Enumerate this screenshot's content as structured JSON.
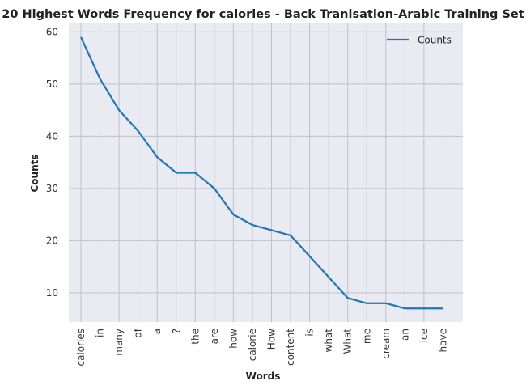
{
  "chart_data": {
    "type": "line",
    "title": "20 Highest Words Frequency for calories - Back Tranlsation-Arabic Training Set",
    "xlabel": "Words",
    "ylabel": "Counts",
    "categories": [
      "calories",
      "in",
      "many",
      "of",
      "a",
      "?",
      "the",
      "are",
      "how",
      "calorie",
      "How",
      "content",
      "is",
      "what",
      "What",
      "me",
      "cream",
      "an",
      "ice",
      "have"
    ],
    "series": [
      {
        "name": "Counts",
        "values": [
          59,
          51,
          45,
          41,
          36,
          33,
          33,
          30,
          25,
          23,
          22,
          21,
          17,
          13,
          9,
          8,
          8,
          7,
          7,
          7
        ]
      }
    ],
    "yticks": [
      10,
      20,
      30,
      40,
      50,
      60
    ],
    "ylim": [
      4.4,
      61.6
    ],
    "grid": true,
    "legend_position": "top-right",
    "colors": {
      "line": "#1f77b4",
      "plot_background": "#eaeaf2",
      "grid": "#c0c0c8"
    }
  }
}
